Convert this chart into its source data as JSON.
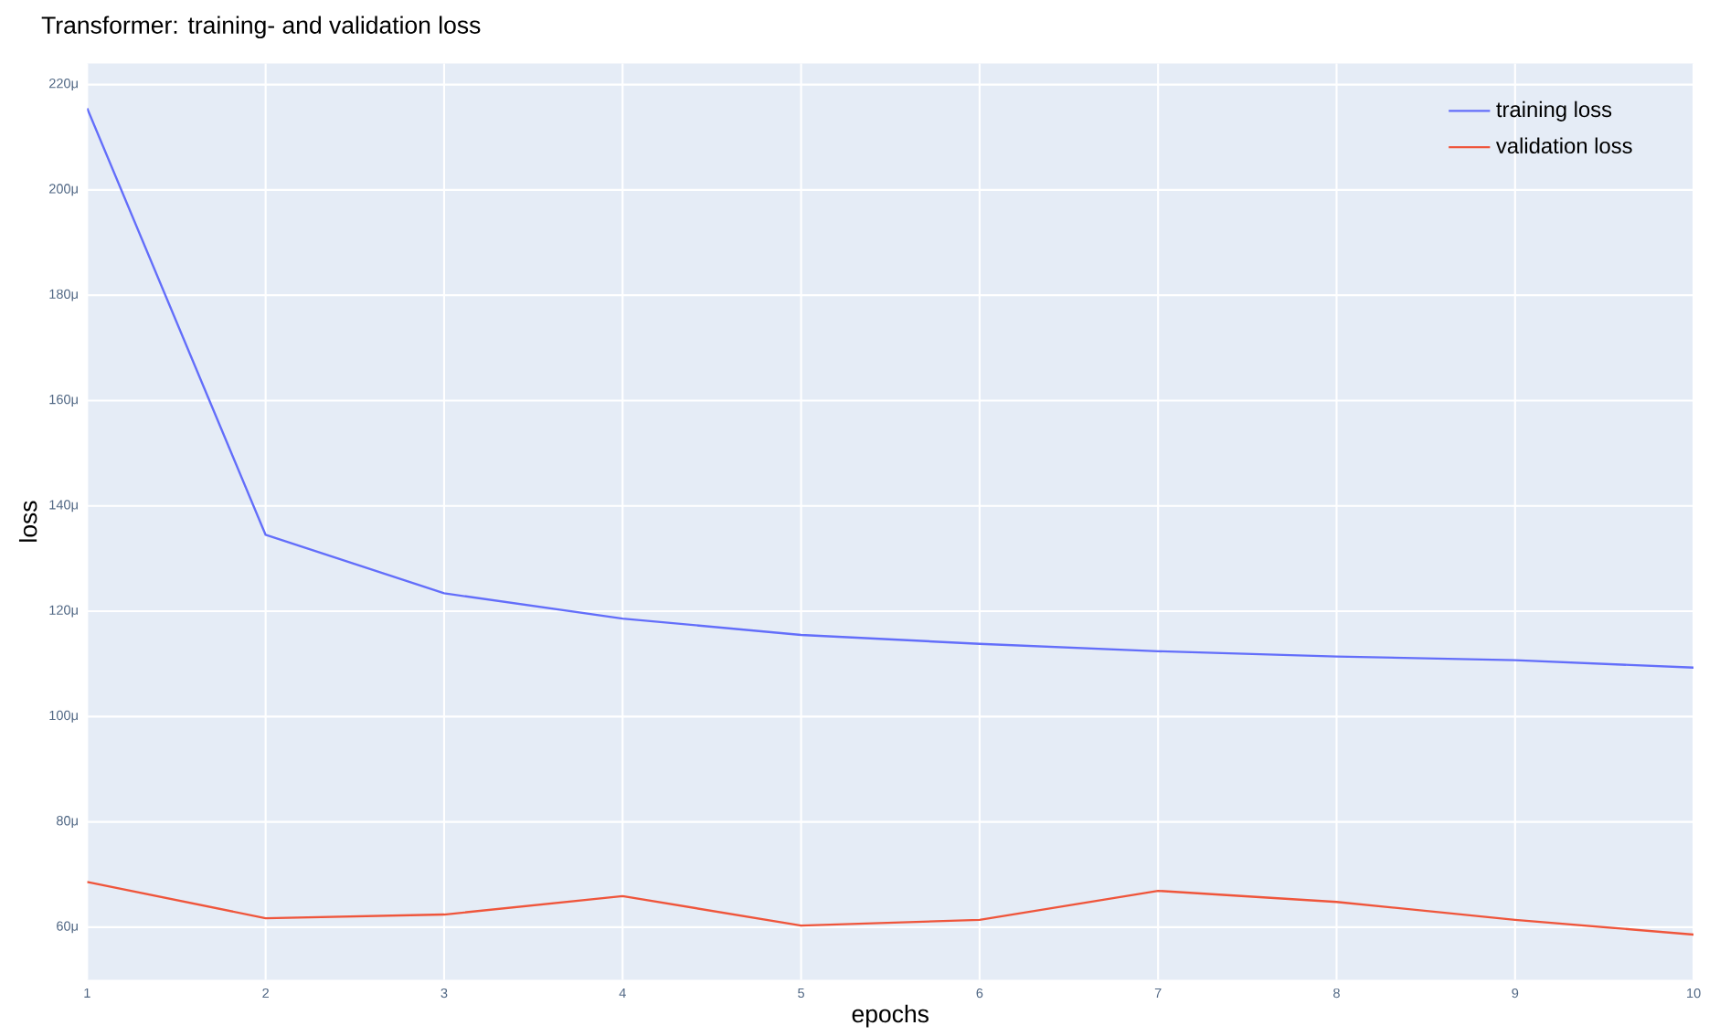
{
  "chart_data": {
    "type": "line",
    "title": "Transformer: training- and validation loss",
    "xlabel": "epochs",
    "ylabel": "loss",
    "x": [
      1,
      2,
      3,
      4,
      5,
      6,
      7,
      8,
      9,
      10
    ],
    "series": [
      {
        "name": "training loss",
        "color": "#636efa",
        "values": [
          215.5,
          134.5,
          123.4,
          118.6,
          115.5,
          113.8,
          112.4,
          111.4,
          110.7,
          109.3
        ]
      },
      {
        "name": "validation loss",
        "color": "#ef553b",
        "values": [
          68.6,
          61.7,
          62.4,
          65.9,
          60.3,
          61.4,
          66.9,
          64.8,
          61.4,
          58.6
        ]
      }
    ],
    "xlim": [
      1,
      10
    ],
    "xticks": [
      1,
      2,
      3,
      4,
      5,
      6,
      7,
      8,
      9,
      10
    ],
    "ylim": [
      50,
      224
    ],
    "yticks": [
      {
        "value": 60,
        "label": "60μ"
      },
      {
        "value": 80,
        "label": "80μ"
      },
      {
        "value": 100,
        "label": "100μ"
      },
      {
        "value": 120,
        "label": "120μ"
      },
      {
        "value": 140,
        "label": "140μ"
      },
      {
        "value": 160,
        "label": "160μ"
      },
      {
        "value": 180,
        "label": "180μ"
      },
      {
        "value": 200,
        "label": "200μ"
      },
      {
        "value": 220,
        "label": "220μ"
      }
    ],
    "grid": true,
    "legend": "top right",
    "marker": "none",
    "line_style": "solid"
  }
}
